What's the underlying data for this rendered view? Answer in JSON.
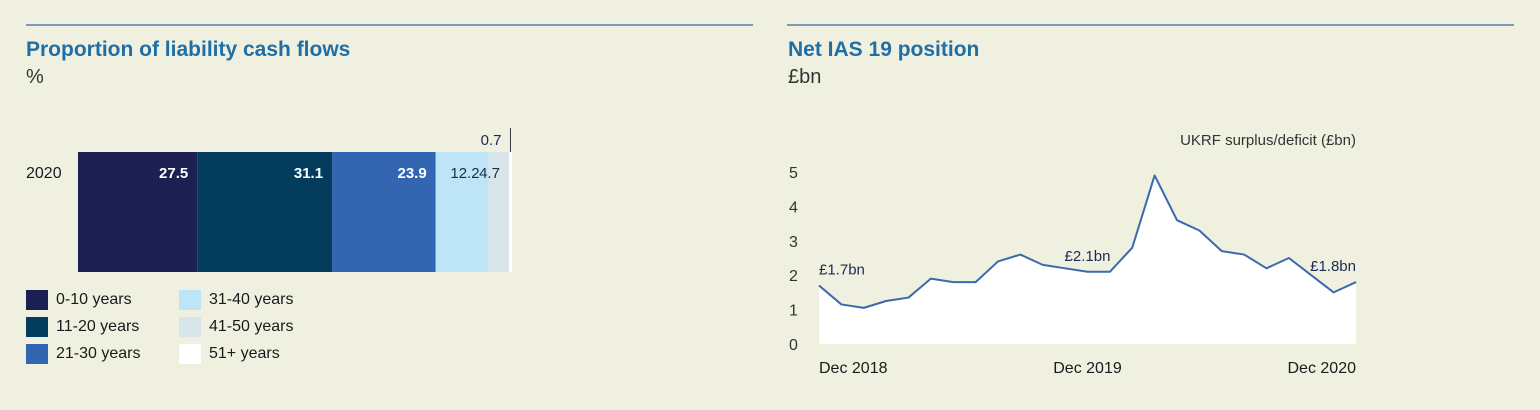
{
  "left": {
    "title": "Proportion of liability cash flows",
    "unit": "%"
  },
  "right": {
    "title": "Net IAS 19 position",
    "unit": "£bn"
  },
  "chart_data": [
    {
      "type": "bar",
      "orientation": "horizontal-stacked",
      "title": "Proportion of liability cash flows",
      "ylabel": "%",
      "categories": [
        "2020"
      ],
      "series": [
        {
          "name": "0-10 years",
          "values": [
            27.5
          ],
          "color": "#1b1f52"
        },
        {
          "name": "11-20 years",
          "values": [
            31.1
          ],
          "color": "#033c5c"
        },
        {
          "name": "21-30 years",
          "values": [
            23.9
          ],
          "color": "#3465b0"
        },
        {
          "name": "31-40 years",
          "values": [
            12.2
          ],
          "color": "#bde4f7"
        },
        {
          "name": "41-50 years",
          "values": [
            4.7
          ],
          "color": "#d8e6ea"
        },
        {
          "name": "51+ years",
          "values": [
            0.7
          ],
          "color": "#ffffff"
        }
      ],
      "labels": [
        "27.5",
        "31.1",
        "23.9",
        "12.2",
        "4.7",
        "0.7"
      ],
      "legend": [
        "0-10 years",
        "11-20 years",
        "21-30 years",
        "31-40 years",
        "41-50 years",
        "51+ years"
      ]
    },
    {
      "type": "area",
      "title": "Net IAS 19 position",
      "ylabel": "£bn",
      "series_label": "UKRF surplus/deficit (£bn)",
      "ylim": [
        0,
        5
      ],
      "yticks": [
        "0",
        "1",
        "2",
        "3",
        "4",
        "5"
      ],
      "xticks": [
        {
          "index": 0,
          "label": "Dec 2018"
        },
        {
          "index": 12,
          "label": "Dec 2019"
        },
        {
          "index": 24,
          "label": "Dec 2020"
        }
      ],
      "values": [
        1.7,
        1.15,
        1.05,
        1.25,
        1.35,
        1.9,
        1.8,
        1.8,
        2.4,
        2.6,
        2.3,
        2.2,
        2.1,
        2.1,
        2.8,
        4.9,
        3.6,
        3.3,
        2.7,
        2.6,
        2.2,
        2.5,
        2.0,
        1.5,
        1.8
      ],
      "annotations": [
        {
          "index": 0,
          "text": "£1.7bn"
        },
        {
          "index": 12,
          "text": "£2.1bn"
        },
        {
          "index": 24,
          "text": "£1.8bn"
        }
      ],
      "fill": "#ffffff",
      "line": "#3b69ad"
    }
  ]
}
